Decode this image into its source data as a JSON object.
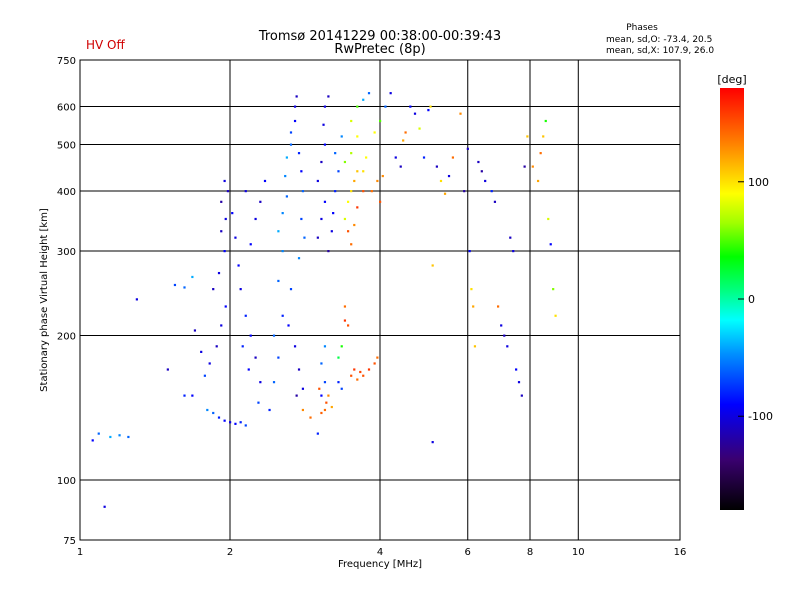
{
  "header": {
    "title_line1": "Tromsø 20141229 00:38:00-00:39:43",
    "title_line2": "RwPretec (8p)",
    "hv_status": "HV Off",
    "phases_title": "Phases",
    "phases_o": "mean, sd,O: -73.4, 20.5",
    "phases_x": "mean, sd,X: 107.9, 26.0"
  },
  "chart_data": {
    "type": "scatter",
    "xlabel": "Frequency [MHz]",
    "ylabel": "Stationary phase Virtual Height [km]",
    "xscale": "log",
    "yscale": "log",
    "xlim": [
      1,
      16
    ],
    "ylim": [
      75,
      750
    ],
    "x_ticks": [
      1,
      2,
      4,
      6,
      8,
      10,
      16
    ],
    "x_tick_labels": [
      "1",
      "2",
      "4",
      "6",
      "8",
      "10",
      "16"
    ],
    "y_ticks": [
      75,
      100,
      200,
      300,
      400,
      500,
      600,
      750
    ],
    "y_tick_labels": [
      "75",
      "100",
      "200",
      "300",
      "400",
      "500",
      "600",
      "750"
    ],
    "grid": true,
    "colorbar": {
      "label": "[deg]",
      "range": [
        -180,
        180
      ],
      "ticks": [
        100,
        0,
        -100
      ],
      "tick_labels": [
        "100",
        "0",
        "-100"
      ]
    },
    "points": [
      [
        1.06,
        121,
        -90
      ],
      [
        1.09,
        125,
        -60
      ],
      [
        1.12,
        88,
        -100
      ],
      [
        1.15,
        123,
        -40
      ],
      [
        1.2,
        124,
        -50
      ],
      [
        1.25,
        123,
        -60
      ],
      [
        1.3,
        238,
        -100
      ],
      [
        1.5,
        170,
        -110
      ],
      [
        1.55,
        255,
        -70
      ],
      [
        1.62,
        150,
        -80
      ],
      [
        1.68,
        150,
        -90
      ],
      [
        1.62,
        252,
        -60
      ],
      [
        1.68,
        265,
        -40
      ],
      [
        1.7,
        205,
        -110
      ],
      [
        1.75,
        185,
        -100
      ],
      [
        1.78,
        165,
        -70
      ],
      [
        1.8,
        140,
        -50
      ],
      [
        1.85,
        138,
        -60
      ],
      [
        1.9,
        135,
        -80
      ],
      [
        1.95,
        133,
        -90
      ],
      [
        2.0,
        132,
        -100
      ],
      [
        2.05,
        131,
        -90
      ],
      [
        2.1,
        132,
        -80
      ],
      [
        2.15,
        130,
        -70
      ],
      [
        1.82,
        175,
        -100
      ],
      [
        1.88,
        190,
        -110
      ],
      [
        1.92,
        210,
        -100
      ],
      [
        1.96,
        230,
        -90
      ],
      [
        1.85,
        250,
        -110
      ],
      [
        1.9,
        270,
        -100
      ],
      [
        1.95,
        300,
        -90
      ],
      [
        1.92,
        330,
        -110
      ],
      [
        1.96,
        350,
        -100
      ],
      [
        1.92,
        380,
        -120
      ],
      [
        1.98,
        400,
        -110
      ],
      [
        1.95,
        420,
        -100
      ],
      [
        2.02,
        360,
        -90
      ],
      [
        2.05,
        320,
        -100
      ],
      [
        2.08,
        280,
        -90
      ],
      [
        2.1,
        250,
        -100
      ],
      [
        2.15,
        220,
        -80
      ],
      [
        2.2,
        200,
        -90
      ],
      [
        2.25,
        180,
        -110
      ],
      [
        2.3,
        160,
        -100
      ],
      [
        2.2,
        310,
        -90
      ],
      [
        2.25,
        350,
        -100
      ],
      [
        2.3,
        380,
        -110
      ],
      [
        2.15,
        400,
        -100
      ],
      [
        2.35,
        420,
        -90
      ],
      [
        2.12,
        190,
        -80
      ],
      [
        2.18,
        170,
        -90
      ],
      [
        2.28,
        145,
        -70
      ],
      [
        2.4,
        140,
        -80
      ],
      [
        2.45,
        160,
        -60
      ],
      [
        2.5,
        180,
        -70
      ],
      [
        2.45,
        200,
        -60
      ],
      [
        2.55,
        220,
        -80
      ],
      [
        2.5,
        260,
        -60
      ],
      [
        2.55,
        300,
        -50
      ],
      [
        2.5,
        330,
        -40
      ],
      [
        2.55,
        360,
        -50
      ],
      [
        2.6,
        390,
        -60
      ],
      [
        2.58,
        430,
        -50
      ],
      [
        2.6,
        470,
        -40
      ],
      [
        2.65,
        500,
        -60
      ],
      [
        2.65,
        530,
        -70
      ],
      [
        2.7,
        560,
        -90
      ],
      [
        2.7,
        600,
        -100
      ],
      [
        2.72,
        630,
        -110
      ],
      [
        2.75,
        480,
        -80
      ],
      [
        2.78,
        440,
        -90
      ],
      [
        2.8,
        400,
        -60
      ],
      [
        2.78,
        350,
        -70
      ],
      [
        2.82,
        320,
        -60
      ],
      [
        2.75,
        290,
        -50
      ],
      [
        2.65,
        250,
        -70
      ],
      [
        2.62,
        210,
        -90
      ],
      [
        2.7,
        190,
        -100
      ],
      [
        2.75,
        170,
        -110
      ],
      [
        2.8,
        155,
        -100
      ],
      [
        2.72,
        150,
        -120
      ],
      [
        2.8,
        140,
        130
      ],
      [
        2.9,
        135,
        140
      ],
      [
        3.0,
        125,
        -80
      ],
      [
        3.05,
        150,
        -90
      ],
      [
        3.1,
        160,
        -70
      ],
      [
        3.05,
        175,
        -60
      ],
      [
        3.1,
        190,
        -50
      ],
      [
        3.0,
        320,
        -110
      ],
      [
        3.05,
        350,
        -100
      ],
      [
        3.1,
        380,
        -90
      ],
      [
        3.0,
        420,
        -100
      ],
      [
        3.05,
        460,
        -110
      ],
      [
        3.1,
        500,
        -90
      ],
      [
        3.08,
        550,
        -100
      ],
      [
        3.1,
        600,
        -100
      ],
      [
        3.15,
        630,
        -110
      ],
      [
        3.15,
        300,
        -120
      ],
      [
        3.2,
        330,
        -100
      ],
      [
        3.22,
        360,
        -90
      ],
      [
        3.25,
        400,
        -80
      ],
      [
        3.3,
        440,
        -70
      ],
      [
        3.25,
        480,
        -60
      ],
      [
        3.35,
        520,
        -50
      ],
      [
        3.1,
        140,
        140
      ],
      [
        3.12,
        145,
        150
      ],
      [
        3.15,
        150,
        130
      ],
      [
        3.2,
        142,
        120
      ],
      [
        3.05,
        138,
        145
      ],
      [
        3.02,
        155,
        150
      ],
      [
        3.3,
        160,
        -80
      ],
      [
        3.35,
        155,
        -70
      ],
      [
        3.3,
        180,
        20
      ],
      [
        3.35,
        190,
        40
      ],
      [
        3.4,
        350,
        80
      ],
      [
        3.45,
        380,
        90
      ],
      [
        3.5,
        400,
        100
      ],
      [
        3.55,
        420,
        120
      ],
      [
        3.6,
        440,
        110
      ],
      [
        3.4,
        460,
        60
      ],
      [
        3.5,
        480,
        70
      ],
      [
        3.6,
        520,
        90
      ],
      [
        3.45,
        330,
        150
      ],
      [
        3.5,
        310,
        140
      ],
      [
        3.55,
        340,
        130
      ],
      [
        3.6,
        370,
        160
      ],
      [
        3.7,
        400,
        150
      ],
      [
        3.7,
        440,
        100
      ],
      [
        3.75,
        470,
        90
      ],
      [
        3.5,
        560,
        80
      ],
      [
        3.6,
        600,
        50
      ],
      [
        3.7,
        620,
        -40
      ],
      [
        3.8,
        640,
        -60
      ],
      [
        3.5,
        165,
        150
      ],
      [
        3.55,
        170,
        160
      ],
      [
        3.6,
        162,
        140
      ],
      [
        3.65,
        168,
        155
      ],
      [
        3.7,
        165,
        150
      ],
      [
        3.4,
        215,
        160
      ],
      [
        3.45,
        210,
        150
      ],
      [
        3.4,
        230,
        140
      ],
      [
        3.8,
        170,
        160
      ],
      [
        3.9,
        175,
        150
      ],
      [
        3.95,
        180,
        140
      ],
      [
        3.85,
        400,
        140
      ],
      [
        3.95,
        420,
        130
      ],
      [
        4.0,
        380,
        150
      ],
      [
        4.05,
        430,
        130
      ],
      [
        3.9,
        530,
        90
      ],
      [
        4.0,
        560,
        50
      ],
      [
        4.1,
        600,
        -60
      ],
      [
        4.2,
        640,
        -100
      ],
      [
        4.3,
        470,
        -100
      ],
      [
        4.4,
        450,
        -110
      ],
      [
        4.45,
        510,
        120
      ],
      [
        4.5,
        530,
        140
      ],
      [
        4.6,
        600,
        -90
      ],
      [
        4.7,
        580,
        -100
      ],
      [
        4.8,
        540,
        80
      ],
      [
        4.9,
        470,
        -80
      ],
      [
        5.0,
        590,
        -90
      ],
      [
        5.05,
        600,
        100
      ],
      [
        5.1,
        280,
        110
      ],
      [
        5.1,
        120,
        -100
      ],
      [
        5.2,
        450,
        -110
      ],
      [
        5.3,
        420,
        100
      ],
      [
        5.4,
        395,
        120
      ],
      [
        5.5,
        430,
        -100
      ],
      [
        5.6,
        470,
        140
      ],
      [
        5.8,
        580,
        130
      ],
      [
        5.9,
        400,
        -120
      ],
      [
        6.0,
        490,
        -110
      ],
      [
        6.05,
        300,
        -90
      ],
      [
        6.1,
        250,
        100
      ],
      [
        6.15,
        230,
        120
      ],
      [
        6.2,
        190,
        110
      ],
      [
        6.3,
        460,
        -110
      ],
      [
        6.4,
        440,
        -120
      ],
      [
        6.5,
        420,
        -100
      ],
      [
        6.7,
        400,
        -80
      ],
      [
        6.8,
        380,
        -110
      ],
      [
        6.9,
        230,
        140
      ],
      [
        7.0,
        210,
        -100
      ],
      [
        7.1,
        200,
        -110
      ],
      [
        7.2,
        190,
        -100
      ],
      [
        7.3,
        320,
        -110
      ],
      [
        7.4,
        300,
        -100
      ],
      [
        7.5,
        170,
        -90
      ],
      [
        7.6,
        160,
        -100
      ],
      [
        7.7,
        150,
        -110
      ],
      [
        7.8,
        450,
        -120
      ],
      [
        7.9,
        520,
        110
      ],
      [
        8.1,
        450,
        130
      ],
      [
        8.3,
        420,
        120
      ],
      [
        8.4,
        480,
        140
      ],
      [
        8.5,
        520,
        110
      ],
      [
        8.6,
        560,
        40
      ],
      [
        8.7,
        350,
        80
      ],
      [
        8.8,
        310,
        -90
      ],
      [
        8.9,
        250,
        60
      ],
      [
        9.0,
        220,
        100
      ]
    ]
  }
}
